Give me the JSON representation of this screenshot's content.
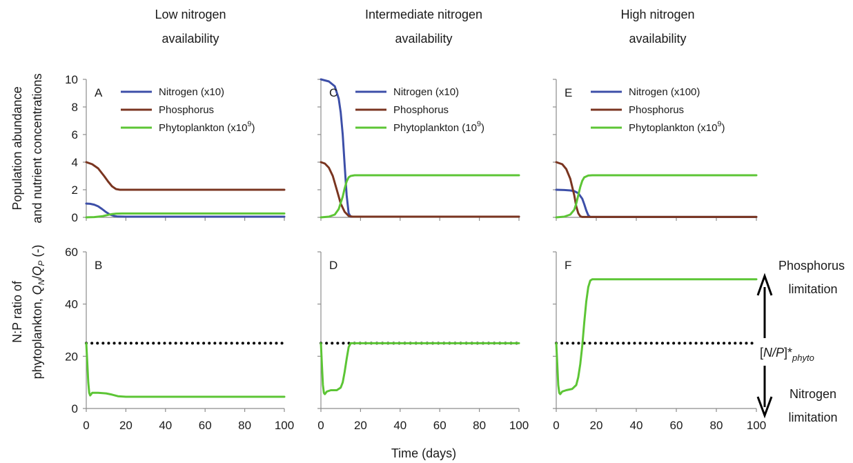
{
  "column_titles": [
    [
      "Low nitrogen",
      "availability"
    ],
    [
      "Intermediate nitrogen",
      "availability"
    ],
    [
      "High nitrogen",
      "availability"
    ]
  ],
  "y_label_top": [
    "Population abundance",
    "and nutrient concentrations"
  ],
  "y_label_bottom_line1": "N:P ratio of",
  "y_label_bottom_line2": {
    "pre": "phytoplankton, ",
    "q": "Q",
    "n": "N",
    "slash": "/",
    "p": "P",
    "post": " (-)"
  },
  "x_label": "Time (days)",
  "threshold_label": {
    "pre": "[",
    "np": "N/P",
    "post": "]*",
    "sub": "phyto"
  },
  "right_annotations": {
    "up": [
      "Phosphorus",
      "limitation"
    ],
    "down": [
      "Nitrogen",
      "limitation"
    ]
  },
  "colors": {
    "nitrogen": "#3d4fa8",
    "phosphorus": "#7a3520",
    "phytoplankton": "#5cc535",
    "axis": "#8c8c8c",
    "threshold": "#000000"
  },
  "chart_data": [
    {
      "type": "line",
      "panel": "A",
      "ylim": [
        0,
        10
      ],
      "xlim": [
        0,
        100
      ],
      "xticks": [
        0,
        20,
        40,
        60,
        80,
        100
      ],
      "yticks": [
        0,
        2,
        4,
        6,
        8,
        10
      ],
      "legend": [
        {
          "series": "nitrogen",
          "text": "Nitrogen (x10)"
        },
        {
          "series": "phosphorus",
          "text": "Phosphorus"
        },
        {
          "series": "phytoplankton",
          "text": "Phytoplankton (x10",
          "sup": "9",
          "after": ")"
        }
      ],
      "series": [
        {
          "key": "nitrogen",
          "x": [
            0,
            2,
            4,
            6,
            8,
            10,
            12,
            14,
            16,
            20,
            100
          ],
          "y": [
            1.0,
            0.98,
            0.92,
            0.8,
            0.6,
            0.38,
            0.2,
            0.1,
            0.06,
            0.05,
            0.05
          ]
        },
        {
          "key": "phosphorus",
          "x": [
            0,
            3,
            6,
            9,
            11,
            13,
            15,
            17,
            20,
            100
          ],
          "y": [
            4.0,
            3.85,
            3.55,
            3.0,
            2.6,
            2.25,
            2.05,
            2.0,
            2.0,
            2.0
          ]
        },
        {
          "key": "phytoplankton",
          "x": [
            0,
            4,
            8,
            11,
            13,
            15,
            18,
            100
          ],
          "y": [
            0.0,
            0.02,
            0.08,
            0.18,
            0.24,
            0.27,
            0.28,
            0.28
          ]
        }
      ]
    },
    {
      "type": "line",
      "panel": "C",
      "ylim": [
        0,
        10
      ],
      "xlim": [
        0,
        100
      ],
      "xticks": [
        0,
        20,
        40,
        60,
        80,
        100
      ],
      "yticks": [
        0,
        2,
        4,
        6,
        8,
        10
      ],
      "legend": [
        {
          "series": "nitrogen",
          "text": "Nitrogen (x10)"
        },
        {
          "series": "phosphorus",
          "text": "Phosphorus"
        },
        {
          "series": "phytoplankton",
          "text": "Phytoplankton (10",
          "sup": "9",
          "after": ")"
        }
      ],
      "series": [
        {
          "key": "nitrogen",
          "x": [
            0,
            4,
            7,
            9,
            10,
            11,
            12,
            13,
            14,
            15,
            100
          ],
          "y": [
            10.0,
            9.85,
            9.5,
            8.6,
            7.6,
            6.0,
            3.8,
            1.6,
            0.3,
            0.05,
            0.05
          ]
        },
        {
          "key": "phosphorus",
          "x": [
            0,
            2,
            4,
            6,
            8,
            10,
            12,
            14,
            16,
            100
          ],
          "y": [
            4.0,
            3.9,
            3.6,
            3.0,
            2.0,
            1.0,
            0.4,
            0.1,
            0.05,
            0.05
          ]
        },
        {
          "key": "phytoplankton",
          "x": [
            0,
            4,
            7,
            9,
            11,
            12,
            13,
            14,
            15,
            17,
            100
          ],
          "y": [
            0.0,
            0.05,
            0.2,
            0.6,
            1.5,
            2.1,
            2.6,
            2.9,
            3.0,
            3.05,
            3.05
          ]
        }
      ]
    },
    {
      "type": "line",
      "panel": "E",
      "ylim": [
        0,
        10
      ],
      "xlim": [
        0,
        100
      ],
      "xticks": [
        0,
        20,
        40,
        60,
        80,
        100
      ],
      "yticks": [
        0,
        2,
        4,
        6,
        8,
        10
      ],
      "legend": [
        {
          "series": "nitrogen",
          "text": "Nitrogen (x100)"
        },
        {
          "series": "phosphorus",
          "text": "Phosphorus"
        },
        {
          "series": "phytoplankton",
          "text": "Phytoplankton (x10",
          "sup": "9",
          "after": ")"
        }
      ],
      "series": [
        {
          "key": "nitrogen",
          "x": [
            0,
            4,
            7,
            9,
            11,
            13,
            14,
            15,
            16,
            17,
            100
          ],
          "y": [
            2.0,
            1.98,
            1.95,
            1.9,
            1.75,
            1.35,
            0.95,
            0.5,
            0.15,
            0.03,
            0.03
          ]
        },
        {
          "key": "phosphorus",
          "x": [
            0,
            3,
            5,
            7,
            9,
            10,
            11,
            12,
            13,
            100
          ],
          "y": [
            4.0,
            3.85,
            3.5,
            2.8,
            1.6,
            0.8,
            0.3,
            0.08,
            0.03,
            0.03
          ]
        },
        {
          "key": "phytoplankton",
          "x": [
            0,
            4,
            7,
            9,
            10,
            11,
            12,
            13,
            14,
            16,
            18,
            100
          ],
          "y": [
            0.0,
            0.05,
            0.2,
            0.55,
            1.0,
            1.6,
            2.2,
            2.65,
            2.9,
            3.03,
            3.05,
            3.05
          ]
        }
      ]
    },
    {
      "type": "line",
      "panel": "B",
      "ylim": [
        0,
        60
      ],
      "xlim": [
        0,
        100
      ],
      "xticks": [
        0,
        20,
        40,
        60,
        80,
        100
      ],
      "yticks": [
        0,
        20,
        40,
        60
      ],
      "threshold": 25,
      "series": [
        {
          "key": "phytoplankton",
          "x": [
            0,
            0.5,
            1,
            1.5,
            2,
            3,
            6,
            10,
            13,
            16,
            20,
            100
          ],
          "y": [
            25,
            18,
            10,
            6,
            5,
            6,
            6,
            5.8,
            5.3,
            4.7,
            4.5,
            4.5
          ]
        }
      ]
    },
    {
      "type": "line",
      "panel": "D",
      "ylim": [
        0,
        60
      ],
      "xlim": [
        0,
        100
      ],
      "xticks": [
        0,
        20,
        40,
        60,
        80,
        100
      ],
      "yticks": [
        0,
        20,
        40,
        60
      ],
      "threshold": 25,
      "series": [
        {
          "key": "phytoplankton",
          "x": [
            0,
            0.5,
            1,
            1.5,
            2,
            3,
            5,
            8,
            10,
            11,
            12,
            13,
            14,
            15,
            100
          ],
          "y": [
            25,
            17,
            9,
            6,
            5.5,
            6.5,
            7,
            7,
            8,
            10,
            14,
            19,
            23.5,
            25,
            25
          ]
        }
      ]
    },
    {
      "type": "line",
      "panel": "F",
      "ylim": [
        0,
        60
      ],
      "xlim": [
        0,
        100
      ],
      "xticks": [
        0,
        20,
        40,
        60,
        80,
        100
      ],
      "yticks": [
        0,
        20,
        40,
        60
      ],
      "threshold": 25,
      "series": [
        {
          "key": "phytoplankton",
          "x": [
            0,
            0.5,
            1,
            1.5,
            2,
            3,
            5,
            8,
            10,
            11,
            12,
            13,
            14,
            15,
            16,
            17,
            18,
            20,
            100
          ],
          "y": [
            25,
            17,
            9,
            6,
            5.5,
            6.5,
            7,
            7.5,
            9,
            12,
            17,
            24,
            33,
            41,
            46.5,
            49,
            49.5,
            49.5,
            49.5
          ]
        }
      ]
    }
  ]
}
